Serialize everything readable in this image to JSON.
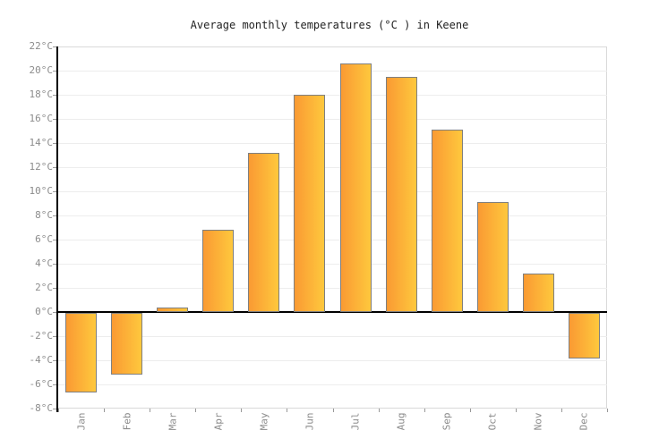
{
  "chart_data": {
    "type": "bar",
    "title": "Average monthly temperatures (°C ) in Keene",
    "categories": [
      "Jan",
      "Feb",
      "Mar",
      "Apr",
      "May",
      "Jun",
      "Jul",
      "Aug",
      "Sep",
      "Oct",
      "Nov",
      "Dec"
    ],
    "values": [
      -6.6,
      -5.1,
      0.4,
      6.8,
      13.2,
      18,
      20.6,
      19.5,
      15.1,
      9.1,
      3.2,
      -3.8
    ],
    "xlabel": "",
    "ylabel": "",
    "ylim": [
      -8,
      22
    ],
    "ytick_step": 2,
    "ytick_suffix": "°C",
    "grid": true,
    "legend": false,
    "colors": {
      "bar_gradient_left": "#FA9A33",
      "bar_gradient_right": "#FEC83D",
      "bar_border": "#7F7F7F",
      "zero_line": "#000000",
      "axis_line": "#000000",
      "grid_line": "#EDEDED",
      "plot_border": "#D9D9D9",
      "tick_color": "#999999",
      "tick_label_color": "#8C8C8C",
      "title_color": "#222222",
      "background": "#FFFFFF"
    }
  }
}
